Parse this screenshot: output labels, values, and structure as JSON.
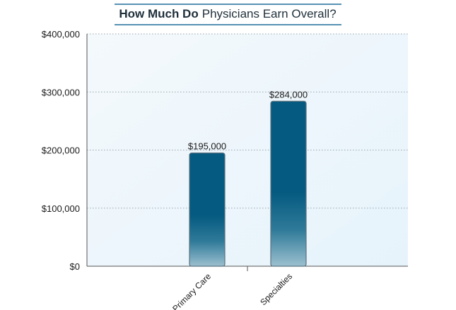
{
  "title": {
    "bold": "How Much Do",
    "regular": "Physicians Earn Overall?"
  },
  "colors": {
    "plot_bg_top": "#f4f9fc",
    "plot_bg_bottom": "#e6f3fb",
    "bar_dark": "#045a80",
    "bar_light": "#9cc0cf",
    "title_rule": "#1f6f9a"
  },
  "chart_data": {
    "type": "bar",
    "categories": [
      "Primary Care",
      "Specialties"
    ],
    "values": [
      195000,
      284000
    ],
    "data_labels": [
      "$195,000",
      "$284,000"
    ],
    "title": "How Much Do Physicians Earn Overall?",
    "xlabel": "",
    "ylabel": "",
    "ylim": [
      0,
      400000
    ],
    "yticks": [
      {
        "value": 0,
        "label": "$0"
      },
      {
        "value": 100000,
        "label": "$100,000"
      },
      {
        "value": 200000,
        "label": "$200,000"
      },
      {
        "value": 300000,
        "label": "$300,000"
      },
      {
        "value": 400000,
        "label": "$400,000"
      }
    ],
    "grid": true,
    "legend": "none"
  }
}
